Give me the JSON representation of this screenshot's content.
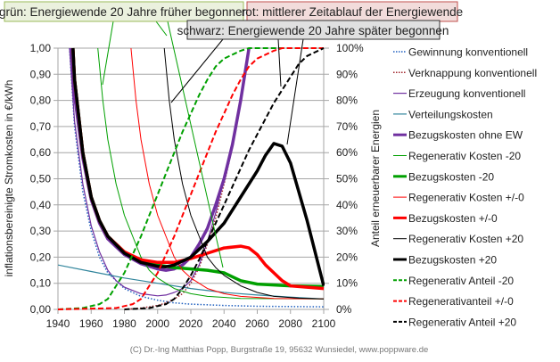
{
  "chart_data": {
    "type": "line",
    "title": "",
    "annotations": {
      "green": "grün: Energiewende 20 Jahre früher begonnen",
      "red": "rot: mittlerer Zeitablauf der Energiewende",
      "black": "schwarz: Energiewende 20 Jahre später begonnen"
    },
    "xlabel": "",
    "ylabel": "inflationsbereinigte Stromkosten in €/kWh",
    "y2label": "Anteil erneuerbarer Energien",
    "xlim": [
      1940,
      2100
    ],
    "ylim": [
      0,
      1
    ],
    "y2lim": [
      0,
      100
    ],
    "x_ticks": [
      "1940",
      "1960",
      "1980",
      "2000",
      "2020",
      "2040",
      "2060",
      "2080",
      "2100"
    ],
    "y_ticks": [
      "0,00",
      "0,10",
      "0,20",
      "0,30",
      "0,40",
      "0,50",
      "0,60",
      "0,70",
      "0,80",
      "0,90",
      "1,00"
    ],
    "y2_ticks": [
      "0%",
      "10%",
      "20%",
      "30%",
      "40%",
      "50%",
      "60%",
      "70%",
      "80%",
      "90%",
      "100%"
    ],
    "grid": true,
    "legend_placement": "right",
    "series": [
      {
        "name": "Gewinnung konventionell",
        "color": "#1f5fbf",
        "style": "dotted",
        "width": 1.5,
        "axis": "left",
        "points": [
          [
            1947,
            1.0
          ],
          [
            1950,
            0.7
          ],
          [
            1955,
            0.45
          ],
          [
            1960,
            0.3
          ],
          [
            1965,
            0.2
          ],
          [
            1970,
            0.14
          ],
          [
            1980,
            0.08
          ],
          [
            1990,
            0.05
          ],
          [
            2000,
            0.035
          ],
          [
            2010,
            0.025
          ],
          [
            2020,
            0.02
          ],
          [
            2040,
            0.015
          ],
          [
            2060,
            0.012
          ],
          [
            2100,
            0.01
          ]
        ]
      },
      {
        "name": "Verknappung konventionell",
        "color": "#a0262d",
        "style": "dotted",
        "width": 1.5,
        "axis": "left",
        "points": [
          [
            1980,
            0.0
          ],
          [
            1990,
            0.005
          ],
          [
            2000,
            0.015
          ],
          [
            2005,
            0.025
          ],
          [
            2010,
            0.04
          ],
          [
            2015,
            0.06
          ],
          [
            2020,
            0.1
          ],
          [
            2025,
            0.16
          ],
          [
            2030,
            0.25
          ],
          [
            2035,
            0.35
          ],
          [
            2040,
            0.48
          ],
          [
            2045,
            0.62
          ],
          [
            2050,
            0.8
          ],
          [
            2055,
            1.0
          ]
        ]
      },
      {
        "name": "Erzeugung konventionell",
        "color": "#7030a0",
        "style": "solid",
        "width": 1.2,
        "axis": "left",
        "points": [
          [
            1947,
            1.0
          ],
          [
            1950,
            0.72
          ],
          [
            1955,
            0.48
          ],
          [
            1960,
            0.32
          ],
          [
            1965,
            0.22
          ],
          [
            1970,
            0.15
          ],
          [
            1975,
            0.11
          ],
          [
            1980,
            0.085
          ],
          [
            1990,
            0.06
          ],
          [
            2000,
            0.052
          ],
          [
            2005,
            0.055
          ],
          [
            2010,
            0.065
          ],
          [
            2015,
            0.08
          ],
          [
            2020,
            0.11
          ],
          [
            2025,
            0.17
          ],
          [
            2030,
            0.26
          ],
          [
            2035,
            0.37
          ],
          [
            2040,
            0.5
          ],
          [
            2045,
            0.64
          ],
          [
            2050,
            0.8
          ],
          [
            2055,
            1.0
          ]
        ]
      },
      {
        "name": "Verteilungskosten",
        "color": "#31859c",
        "style": "solid",
        "width": 1.2,
        "axis": "left",
        "points": [
          [
            1940,
            0.17
          ],
          [
            1960,
            0.145
          ],
          [
            1980,
            0.12
          ],
          [
            2000,
            0.1
          ],
          [
            2020,
            0.08
          ],
          [
            2040,
            0.065
          ],
          [
            2060,
            0.055
          ],
          [
            2080,
            0.047
          ],
          [
            2100,
            0.04
          ]
        ]
      },
      {
        "name": "Bezugskosten ohne EW",
        "color": "#7030a0",
        "style": "solid",
        "width": 3.5,
        "axis": "left",
        "points": [
          [
            1948,
            1.0
          ],
          [
            1950,
            0.82
          ],
          [
            1955,
            0.58
          ],
          [
            1960,
            0.42
          ],
          [
            1965,
            0.33
          ],
          [
            1970,
            0.27
          ],
          [
            1980,
            0.21
          ],
          [
            1990,
            0.175
          ],
          [
            2000,
            0.155
          ],
          [
            2005,
            0.15
          ],
          [
            2010,
            0.155
          ],
          [
            2015,
            0.17
          ],
          [
            2020,
            0.2
          ],
          [
            2025,
            0.25
          ],
          [
            2030,
            0.31
          ],
          [
            2035,
            0.4
          ],
          [
            2040,
            0.5
          ],
          [
            2045,
            0.63
          ],
          [
            2050,
            0.8
          ],
          [
            2055,
            1.0
          ]
        ]
      },
      {
        "name": "Regenerativ Kosten -20",
        "color": "#00a000",
        "style": "solid",
        "width": 1,
        "axis": "left",
        "points": [
          [
            1964,
            1.0
          ],
          [
            1967,
            0.8
          ],
          [
            1970,
            0.65
          ],
          [
            1975,
            0.48
          ],
          [
            1980,
            0.36
          ],
          [
            1985,
            0.28
          ],
          [
            1990,
            0.2
          ],
          [
            1995,
            0.15
          ],
          [
            2000,
            0.12
          ],
          [
            2010,
            0.08
          ],
          [
            2020,
            0.06
          ],
          [
            2030,
            0.05
          ],
          [
            2050,
            0.042
          ],
          [
            2100,
            0.04
          ]
        ]
      },
      {
        "name": "Bezugskosten -20",
        "color": "#00a000",
        "style": "solid",
        "width": 3.5,
        "axis": "left",
        "points": [
          [
            1949,
            1.0
          ],
          [
            1950,
            0.88
          ],
          [
            1955,
            0.6
          ],
          [
            1960,
            0.43
          ],
          [
            1965,
            0.34
          ],
          [
            1970,
            0.28
          ],
          [
            1980,
            0.22
          ],
          [
            1985,
            0.2
          ],
          [
            1990,
            0.185
          ],
          [
            2000,
            0.17
          ],
          [
            2010,
            0.16
          ],
          [
            2020,
            0.155
          ],
          [
            2030,
            0.15
          ],
          [
            2040,
            0.14
          ],
          [
            2045,
            0.125
          ],
          [
            2050,
            0.11
          ],
          [
            2060,
            0.097
          ],
          [
            2080,
            0.09
          ],
          [
            2100,
            0.088
          ]
        ]
      },
      {
        "name": "Regenerativ Kosten +/-0",
        "color": "#ff0000",
        "style": "solid",
        "width": 1,
        "axis": "left",
        "points": [
          [
            1984,
            1.0
          ],
          [
            1987,
            0.8
          ],
          [
            1990,
            0.65
          ],
          [
            1995,
            0.48
          ],
          [
            2000,
            0.36
          ],
          [
            2005,
            0.28
          ],
          [
            2010,
            0.2
          ],
          [
            2015,
            0.15
          ],
          [
            2020,
            0.12
          ],
          [
            2030,
            0.08
          ],
          [
            2040,
            0.06
          ],
          [
            2050,
            0.05
          ],
          [
            2070,
            0.042
          ],
          [
            2100,
            0.04
          ]
        ]
      },
      {
        "name": "Bezugskosten +/-0",
        "color": "#ff0000",
        "style": "solid",
        "width": 3.5,
        "axis": "left",
        "points": [
          [
            1949,
            1.0
          ],
          [
            1950,
            0.88
          ],
          [
            1955,
            0.6
          ],
          [
            1960,
            0.43
          ],
          [
            1965,
            0.34
          ],
          [
            1970,
            0.28
          ],
          [
            1980,
            0.22
          ],
          [
            1990,
            0.19
          ],
          [
            2000,
            0.18
          ],
          [
            2010,
            0.18
          ],
          [
            2020,
            0.195
          ],
          [
            2030,
            0.215
          ],
          [
            2040,
            0.235
          ],
          [
            2050,
            0.242
          ],
          [
            2055,
            0.235
          ],
          [
            2060,
            0.21
          ],
          [
            2065,
            0.17
          ],
          [
            2070,
            0.14
          ],
          [
            2075,
            0.11
          ],
          [
            2080,
            0.09
          ],
          [
            2090,
            0.085
          ],
          [
            2100,
            0.08
          ]
        ]
      },
      {
        "name": "Regenerativ Kosten +20",
        "color": "#000000",
        "style": "solid",
        "width": 1,
        "axis": "left",
        "points": [
          [
            2004,
            1.0
          ],
          [
            2007,
            0.8
          ],
          [
            2010,
            0.65
          ],
          [
            2015,
            0.48
          ],
          [
            2020,
            0.36
          ],
          [
            2025,
            0.28
          ],
          [
            2030,
            0.2
          ],
          [
            2035,
            0.16
          ],
          [
            2040,
            0.13
          ],
          [
            2050,
            0.09
          ],
          [
            2060,
            0.065
          ],
          [
            2070,
            0.05
          ],
          [
            2085,
            0.043
          ],
          [
            2100,
            0.04
          ]
        ]
      },
      {
        "name": "Bezugskosten +20",
        "color": "#000000",
        "style": "solid",
        "width": 3.5,
        "axis": "left",
        "points": [
          [
            1949,
            1.0
          ],
          [
            1950,
            0.88
          ],
          [
            1955,
            0.6
          ],
          [
            1960,
            0.43
          ],
          [
            1965,
            0.34
          ],
          [
            1970,
            0.28
          ],
          [
            1980,
            0.215
          ],
          [
            1990,
            0.18
          ],
          [
            2000,
            0.165
          ],
          [
            2005,
            0.163
          ],
          [
            2010,
            0.17
          ],
          [
            2020,
            0.2
          ],
          [
            2030,
            0.26
          ],
          [
            2040,
            0.33
          ],
          [
            2050,
            0.43
          ],
          [
            2060,
            0.53
          ],
          [
            2065,
            0.59
          ],
          [
            2070,
            0.635
          ],
          [
            2075,
            0.625
          ],
          [
            2080,
            0.56
          ],
          [
            2090,
            0.34
          ],
          [
            2100,
            0.09
          ]
        ]
      },
      {
        "name": "Regenerativ Anteil -20",
        "color": "#00a000",
        "style": "dashed",
        "width": 2,
        "axis": "right",
        "points": [
          [
            1940,
            0
          ],
          [
            1955,
            0.5
          ],
          [
            1965,
            2
          ],
          [
            1970,
            4
          ],
          [
            1975,
            9
          ],
          [
            1980,
            14
          ],
          [
            1985,
            21
          ],
          [
            1990,
            28
          ],
          [
            1995,
            36
          ],
          [
            2000,
            44
          ],
          [
            2005,
            52
          ],
          [
            2010,
            60
          ],
          [
            2015,
            68
          ],
          [
            2020,
            75
          ],
          [
            2025,
            82
          ],
          [
            2030,
            88
          ],
          [
            2035,
            93
          ],
          [
            2040,
            96
          ],
          [
            2050,
            99
          ],
          [
            2055,
            100
          ],
          [
            2100,
            100
          ]
        ]
      },
      {
        "name": "Regenerativanteil +/-0",
        "color": "#ff0000",
        "style": "dashed",
        "width": 2,
        "axis": "right",
        "points": [
          [
            1940,
            0
          ],
          [
            1975,
            0.5
          ],
          [
            1985,
            2
          ],
          [
            1990,
            4
          ],
          [
            1995,
            9
          ],
          [
            2000,
            14
          ],
          [
            2005,
            21
          ],
          [
            2010,
            28
          ],
          [
            2015,
            36
          ],
          [
            2020,
            44
          ],
          [
            2025,
            52
          ],
          [
            2030,
            60
          ],
          [
            2035,
            68
          ],
          [
            2040,
            75
          ],
          [
            2045,
            82
          ],
          [
            2050,
            88
          ],
          [
            2055,
            93
          ],
          [
            2060,
            96
          ],
          [
            2070,
            99
          ],
          [
            2075,
            100
          ],
          [
            2100,
            100
          ]
        ]
      },
      {
        "name": "Regenerativ Anteil +20",
        "color": "#000000",
        "style": "dashed",
        "width": 2,
        "axis": "right",
        "points": [
          [
            1980,
            0
          ],
          [
            1995,
            0.5
          ],
          [
            2005,
            2
          ],
          [
            2010,
            4
          ],
          [
            2015,
            8
          ],
          [
            2020,
            13
          ],
          [
            2025,
            19
          ],
          [
            2030,
            26
          ],
          [
            2035,
            33
          ],
          [
            2040,
            40
          ],
          [
            2045,
            47
          ],
          [
            2050,
            54
          ],
          [
            2055,
            61
          ],
          [
            2060,
            67
          ],
          [
            2065,
            73
          ],
          [
            2070,
            79
          ],
          [
            2075,
            84
          ],
          [
            2080,
            89
          ],
          [
            2085,
            94
          ],
          [
            2090,
            97
          ],
          [
            2100,
            100
          ]
        ]
      }
    ]
  },
  "footer": "(C) Dr.-Ing Matthias Popp, Burgstraße 19, 95632 Wunsiedel, www.poppware.de"
}
